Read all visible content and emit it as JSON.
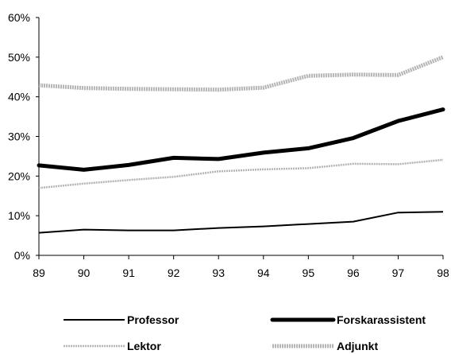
{
  "chart_data": {
    "type": "line",
    "title": "",
    "xlabel": "",
    "ylabel": "",
    "ylim": [
      0,
      60
    ],
    "grid": false,
    "legend_position": "bottom",
    "categories": [
      "89",
      "90",
      "91",
      "92",
      "93",
      "94",
      "95",
      "96",
      "97",
      "98"
    ],
    "y_ticks": [
      "0%",
      "10%",
      "20%",
      "30%",
      "40%",
      "50%",
      "60%"
    ],
    "series": [
      {
        "name": "Professor",
        "color": "#000000",
        "style": "thin-solid",
        "values": [
          5.7,
          6.5,
          6.3,
          6.3,
          6.9,
          7.3,
          7.9,
          8.5,
          10.8,
          11.0
        ]
      },
      {
        "name": "Forskarassistent",
        "color": "#000000",
        "style": "thick-solid",
        "values": [
          22.7,
          21.6,
          22.8,
          24.6,
          24.3,
          25.9,
          27.0,
          29.6,
          33.9,
          36.8
        ]
      },
      {
        "name": "Lektor",
        "color": "#b4b4b4",
        "style": "thin-gray",
        "values": [
          17.0,
          18.1,
          19.0,
          19.8,
          21.2,
          21.7,
          22.0,
          23.1,
          23.0,
          24.1
        ]
      },
      {
        "name": "Adjunkt",
        "color": "#b4b4b4",
        "style": "thick-gray",
        "values": [
          42.9,
          42.2,
          42.0,
          41.9,
          41.8,
          42.3,
          45.3,
          45.6,
          45.5,
          50.0
        ]
      }
    ]
  }
}
